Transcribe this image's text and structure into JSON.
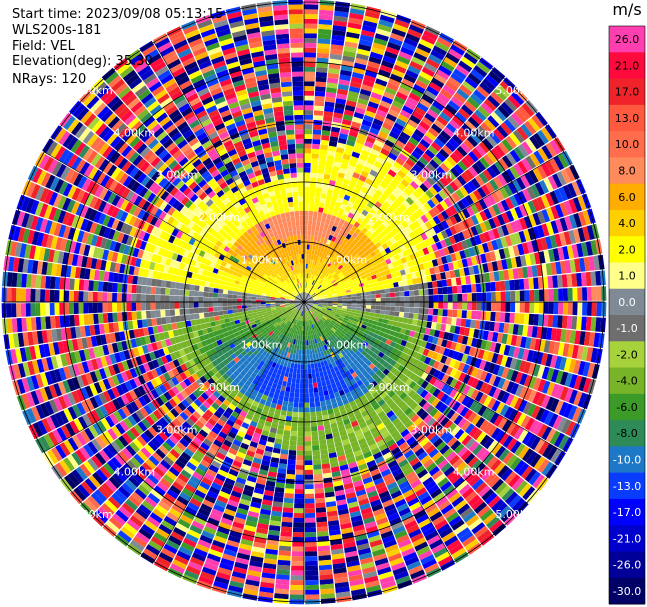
{
  "info": {
    "start_time": "Start time: 2023/09/08 05:13:15",
    "instrument": "WLS200s-181",
    "field": "Field: VEL",
    "elevation": "Elevation(deg): 35.30",
    "nrays": "NRays: 120"
  },
  "colorbar": {
    "unit": "m/s",
    "bins": [
      {
        "label": "26.0",
        "color": "#ff3fb0"
      },
      {
        "label": "21.0",
        "color": "#ff0a3c"
      },
      {
        "label": "17.0",
        "color": "#f0222a"
      },
      {
        "label": "13.0",
        "color": "#ff5a40"
      },
      {
        "label": "10.0",
        "color": "#ff6d4c"
      },
      {
        "label": "8.0",
        "color": "#ff8a5c"
      },
      {
        "label": "6.0",
        "color": "#ffad00"
      },
      {
        "label": "4.0",
        "color": "#ffd000"
      },
      {
        "label": "2.0",
        "color": "#ffff00"
      },
      {
        "label": "1.0",
        "color": "#ffff8a"
      },
      {
        "label": "0.0",
        "color": "#7f8a94"
      },
      {
        "label": "-1.0",
        "color": "#6e6e6e"
      },
      {
        "label": "-2.0",
        "color": "#a6d23c"
      },
      {
        "label": "-4.0",
        "color": "#78b428"
      },
      {
        "label": "-6.0",
        "color": "#3c9a28"
      },
      {
        "label": "-8.0",
        "color": "#2e8b57"
      },
      {
        "label": "-10.0",
        "color": "#1e78c8"
      },
      {
        "label": "-13.0",
        "color": "#0a3cff"
      },
      {
        "label": "-17.0",
        "color": "#0000ff"
      },
      {
        "label": "-21.0",
        "color": "#0000cc"
      },
      {
        "label": "-26.0",
        "color": "#000099"
      },
      {
        "label": "-30.0",
        "color": "#000066"
      }
    ]
  },
  "chart_data": {
    "type": "heatmap",
    "subtype": "radar-ppi",
    "field": "VEL",
    "unit": "m/s",
    "nrays": 120,
    "elevation_deg": 35.3,
    "range_rings": [
      {
        "label": "1.00km",
        "radius_km": 1.0
      },
      {
        "label": "2.00km",
        "radius_km": 2.0
      },
      {
        "label": "3.00km",
        "radius_km": 3.0
      },
      {
        "label": "4.00km",
        "radius_km": 4.0
      },
      {
        "label": "5.00km",
        "radius_km": 5.0
      }
    ],
    "regions": [
      {
        "description_value_ms": 8.0,
        "azimuth_range_deg": [
          290,
          70
        ],
        "range_km": [
          0.3,
          1.5
        ]
      },
      {
        "description_value_ms": 2.0,
        "azimuth_range_deg": [
          270,
          90
        ],
        "range_km": [
          1.2,
          2.5
        ]
      },
      {
        "description_value_ms": -6.0,
        "azimuth_range_deg": [
          100,
          260
        ],
        "range_km": [
          0.3,
          2.0
        ]
      },
      {
        "description_value_ms": -10.0,
        "azimuth_range_deg": [
          150,
          210
        ],
        "range_km": [
          0.5,
          1.3
        ]
      }
    ]
  }
}
